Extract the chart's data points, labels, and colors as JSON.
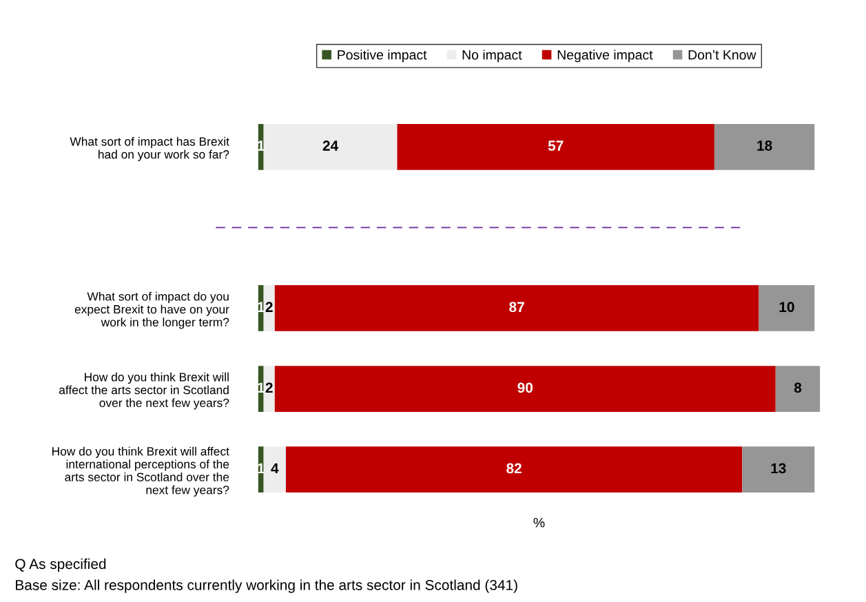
{
  "chart_data": {
    "type": "bar",
    "orientation": "horizontal",
    "stacked": true,
    "data_labels": true,
    "legend": "top",
    "grid": false,
    "xlabel": "%",
    "categories": [
      "What sort of impact has Brexit\nhad on your work so far?",
      null,
      "What sort of impact do you\nexpect Brexit to have on your\nwork in the longer term?",
      "How do you think Brexit will\naffect the arts sector in Scotland\nover the next few years?",
      "How do you think Brexit will affect\ninternational perceptions of the\narts sector in Scotland over the\nnext few years?"
    ],
    "series": [
      {
        "name": "Positive impact",
        "color": "#375623",
        "values": [
          1,
          null,
          1,
          1,
          1
        ]
      },
      {
        "name": "No impact",
        "color": "#ededed",
        "values": [
          24,
          null,
          2,
          2,
          4
        ]
      },
      {
        "name": "Negative impact",
        "color": "#c00000",
        "values": [
          57,
          null,
          87,
          90,
          82
        ]
      },
      {
        "name": "Don’t Know",
        "color": "#969696",
        "values": [
          18,
          null,
          10,
          8,
          13
        ]
      }
    ],
    "annotations": [
      "Q As specified",
      "Base size: All respondents currently working in the arts sector in Scotland (341)"
    ]
  }
}
